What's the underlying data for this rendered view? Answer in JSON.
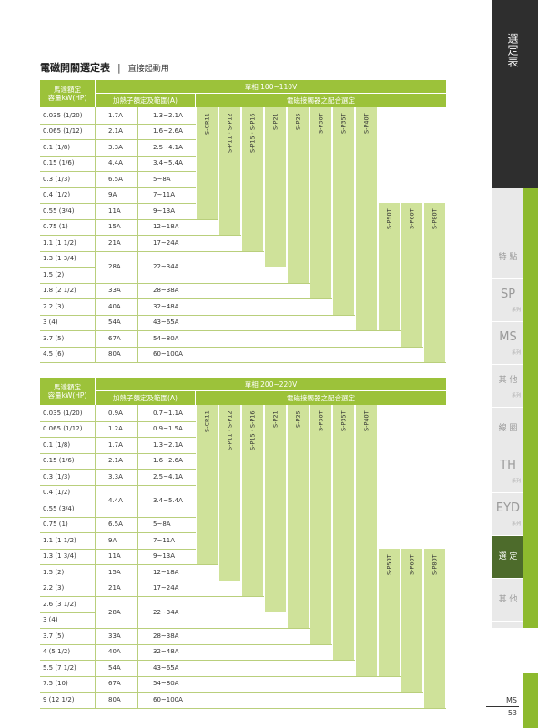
{
  "header": {
    "title": "電磁開關選定表",
    "subtitle": "直接起動用"
  },
  "tables": [
    {
      "hp_header": [
        "馬達額定",
        "容量kW(HP)"
      ],
      "phase": "單相 100~110V",
      "heater_header": "加熱子額定及範圍(A)",
      "contactor_header": "電磁接觸器之配合選定",
      "contactors": [
        "S-CR11",
        "S-P11 · S-P12",
        "S-P15 · S-P16",
        "S-P21",
        "S-P25",
        "S-P30T",
        "S-P35T",
        "S-P40T",
        "S-P50T",
        "S-P60T",
        "S-P80T"
      ],
      "rows": [
        {
          "hp": [
            "0.035 (1/20)"
          ],
          "rated": "1.7A",
          "range": "1.3~2.1A"
        },
        {
          "hp": [
            "0.065 (1/12)"
          ],
          "rated": "2.1A",
          "range": "1.6~2.6A"
        },
        {
          "hp": [
            "0.1 (1/8)"
          ],
          "rated": "3.3A",
          "range": "2.5~4.1A"
        },
        {
          "hp": [
            "0.15 (1/6)"
          ],
          "rated": "4.4A",
          "range": "3.4~5.4A"
        },
        {
          "hp": [
            "0.3 (1/3)"
          ],
          "rated": "6.5A",
          "range": "5~8A"
        },
        {
          "hp": [
            "0.4 (1/2)"
          ],
          "rated": "9A",
          "range": "7~11A"
        },
        {
          "hp": [
            "0.55 (3/4)"
          ],
          "rated": "11A",
          "range": "9~13A"
        },
        {
          "hp": [
            "0.75 (1)"
          ],
          "rated": "15A",
          "range": "12~18A"
        },
        {
          "hp": [
            "1.1 (1 1/2)"
          ],
          "rated": "21A",
          "range": "17~24A"
        },
        {
          "hp": [
            "1.3 (1 3/4)",
            "1.5 (2)"
          ],
          "rated": "28A",
          "range": "22~34A"
        },
        {
          "hp": [
            "1.8 (2 1/2)"
          ],
          "rated": "33A",
          "range": "28~38A"
        },
        {
          "hp": [
            "2.2 (3)"
          ],
          "rated": "40A",
          "range": "32~48A"
        },
        {
          "hp": [
            "3 (4)"
          ],
          "rated": "54A",
          "range": "43~65A"
        },
        {
          "hp": [
            "3.7 (5)"
          ],
          "rated": "67A",
          "range": "54~80A"
        },
        {
          "hp": [
            "4.5 (6)"
          ],
          "rated": "80A",
          "range": "60~100A"
        }
      ]
    },
    {
      "hp_header": [
        "馬達額定",
        "容量kW(HP)"
      ],
      "phase": "單相 200~220V",
      "heater_header": "加熱子額定及範圍(A)",
      "contactor_header": "電磁接觸器之配合選定",
      "contactors": [
        "S-CR11",
        "S-P11 · S-P12",
        "S-P15 · S-P16",
        "S-P21",
        "S-P25",
        "S-P30T",
        "S-P35T",
        "S-P40T",
        "S-P50T",
        "S-P60T",
        "S-P80T"
      ],
      "rows": [
        {
          "hp": [
            "0.035 (1/20)"
          ],
          "rated": "0.9A",
          "range": "0.7~1.1A"
        },
        {
          "hp": [
            "0.065 (1/12)"
          ],
          "rated": "1.2A",
          "range": "0.9~1.5A"
        },
        {
          "hp": [
            "0.1 (1/8)"
          ],
          "rated": "1.7A",
          "range": "1.3~2.1A"
        },
        {
          "hp": [
            "0.15 (1/6)"
          ],
          "rated": "2.1A",
          "range": "1.6~2.6A"
        },
        {
          "hp": [
            "0.3 (1/3)"
          ],
          "rated": "3.3A",
          "range": "2.5~4.1A"
        },
        {
          "hp": [
            "0.4 (1/2)",
            "0.55 (3/4)"
          ],
          "rated": "4.4A",
          "range": "3.4~5.4A"
        },
        {
          "hp": [
            "0.75 (1)"
          ],
          "rated": "6.5A",
          "range": "5~8A"
        },
        {
          "hp": [
            "1.1 (1 1/2)"
          ],
          "rated": "9A",
          "range": "7~11A"
        },
        {
          "hp": [
            "1.3 (1 3/4)"
          ],
          "rated": "11A",
          "range": "9~13A"
        },
        {
          "hp": [
            "1.5 (2)"
          ],
          "rated": "15A",
          "range": "12~18A"
        },
        {
          "hp": [
            "2.2 (3)"
          ],
          "rated": "21A",
          "range": "17~24A"
        },
        {
          "hp": [
            "2.6 (3 1/2)",
            "3 (4)"
          ],
          "rated": "28A",
          "range": "22~34A"
        },
        {
          "hp": [
            "3.7 (5)"
          ],
          "rated": "33A",
          "range": "28~38A"
        },
        {
          "hp": [
            "4 (5 1/2)"
          ],
          "rated": "40A",
          "range": "32~48A"
        },
        {
          "hp": [
            "5.5 (7 1/2)"
          ],
          "rated": "54A",
          "range": "43~65A"
        },
        {
          "hp": [
            "7.5 (10)"
          ],
          "rated": "67A",
          "range": "54~80A"
        },
        {
          "hp": [
            "9 (12 1/2)"
          ],
          "rated": "80A",
          "range": "60~100A"
        }
      ]
    }
  ],
  "sidebar": {
    "heading": "選定表",
    "tabs": [
      {
        "label": "特 點"
      },
      {
        "label": "SP",
        "sub": "系列"
      },
      {
        "label": "MS",
        "sub": "系列"
      },
      {
        "label": "其 他",
        "sub": "系列"
      },
      {
        "label": "線 圈"
      },
      {
        "label": "TH",
        "sub": "系列"
      },
      {
        "label": "EYD",
        "sub": "系列"
      },
      {
        "label": "選 定"
      },
      {
        "label": "其 他"
      }
    ]
  },
  "footer": {
    "series": "MS",
    "page": "53"
  }
}
